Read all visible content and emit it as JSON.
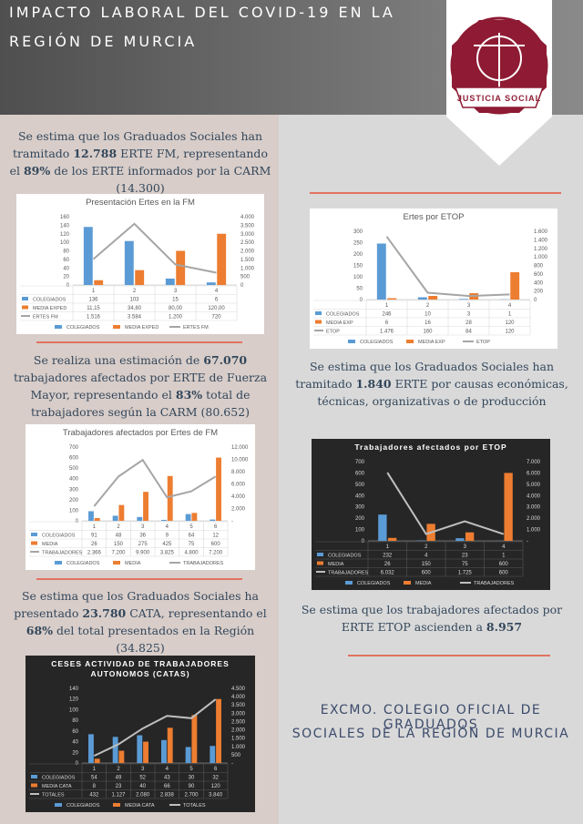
{
  "header": {
    "title_lines": [
      "IMPACTO LABORAL DEL COVID-19 EN LA",
      "REGIÓN DE MURCIA"
    ],
    "logo_text": "JUSTICIA SOCIAL"
  },
  "texts": [
    {
      "runs": [
        {
          "text": "Se estima que los Graduados Sociales han tramitado "
        },
        {
          "text": "12.788",
          "bold": true
        },
        {
          "text": " ERTE FM, representando el "
        },
        {
          "text": "89%",
          "bold": true
        },
        {
          "text": " de los ERTE informados por la CARM (14.300)"
        }
      ]
    },
    {
      "runs": [
        {
          "text": "Se realiza una estimación de "
        },
        {
          "text": "67.070",
          "bold": true
        },
        {
          "text": " trabajadores afectados por ERTE de Fuerza Mayor, representando el "
        },
        {
          "text": "83%",
          "bold": true
        },
        {
          "text": "  total de trabajadores según la CARM (80.652)"
        }
      ]
    },
    {
      "runs": [
        {
          "text": "Se estima que los Graduados Sociales ha presentado "
        },
        {
          "text": "23.780",
          "bold": true
        },
        {
          "text": " CATA, representando el "
        },
        {
          "text": "68%",
          "bold": true
        },
        {
          "text": " del total presentados en la Región (34.825)"
        }
      ]
    },
    {
      "runs": [
        {
          "text": "Se estima que los Graduados Sociales han tramitado "
        },
        {
          "text": "1.840",
          "bold": true
        },
        {
          "text": " ERTE por causas económicas, técnicas, organizativas o de producción"
        }
      ]
    },
    {
      "runs": [
        {
          "text": "Se estima que los trabajadores afectados por ERTE ETOP ascienden a "
        },
        {
          "text": "8.957",
          "bold": true
        }
      ]
    }
  ],
  "footer": {
    "lines": [
      "EXCMO. COLEGIO OFICIAL DE GRADUADOS",
      "SOCIALES DE LA REGIÓN DE MURCIA"
    ]
  },
  "chart_data": [
    {
      "type": "bar",
      "title": [
        "Presentación Ertes en la FM"
      ],
      "background": "#ffffff",
      "text_color": "#595959",
      "categories": [
        "1",
        "2",
        "3",
        "4"
      ],
      "ylim": [
        0,
        160
      ],
      "yticks": [
        0,
        20,
        40,
        60,
        80,
        100,
        120,
        140,
        160
      ],
      "y2lim": [
        0,
        4000
      ],
      "y2ticks": [
        0,
        500,
        {
          "value": 1000,
          "label": "1.000"
        },
        {
          "value": 1500,
          "label": "1.500"
        },
        {
          "value": 2000,
          "label": "2.000"
        },
        {
          "value": 2500,
          "label": "2.500"
        },
        {
          "value": 3000,
          "label": "3.000"
        },
        {
          "value": 3500,
          "label": "3.500"
        },
        {
          "value": 4000,
          "label": "4.000"
        }
      ],
      "series": [
        {
          "name": "COLEGIADOS",
          "color": "#5b9bd5",
          "values": [
            136,
            103,
            15,
            6
          ]
        },
        {
          "name": "MEDIA EXPED",
          "color": "#ed7d31",
          "values": [
            11.15,
            34.8,
            80,
            120
          ],
          "value_labels": [
            "11,15",
            "34,80",
            "80,00",
            "120,00"
          ]
        },
        {
          "name": "ERTES FM",
          "color": "#a5a5a5",
          "type": "line",
          "axis": "y2",
          "values": [
            1516,
            3584,
            1200,
            720
          ],
          "value_labels": [
            "1.516",
            "3.584",
            "1.200",
            "720"
          ]
        }
      ]
    },
    {
      "type": "bar",
      "title": [
        "Ertes por ETOP"
      ],
      "background": "#ffffff",
      "text_color": "#595959",
      "categories": [
        "1",
        "2",
        "3",
        "4"
      ],
      "ylim": [
        0,
        300
      ],
      "yticks": [
        0,
        50,
        100,
        150,
        200,
        250,
        300
      ],
      "y2lim": [
        0,
        1600
      ],
      "y2ticks": [
        0,
        200,
        400,
        600,
        800,
        {
          "value": 1000,
          "label": "1.000"
        },
        {
          "value": 1200,
          "label": "1.200"
        },
        {
          "value": 1400,
          "label": "1.400"
        },
        {
          "value": 1600,
          "label": "1.600"
        }
      ],
      "series": [
        {
          "name": "COLEGIADOS",
          "color": "#5b9bd5",
          "values": [
            246,
            10,
            3,
            1
          ]
        },
        {
          "name": "MEDIA EXP",
          "color": "#ed7d31",
          "values": [
            6,
            16,
            28,
            120
          ]
        },
        {
          "name": "ETOP",
          "color": "#a5a5a5",
          "type": "line",
          "axis": "y2",
          "values": [
            1476,
            160,
            84,
            120
          ],
          "value_labels": [
            "1.476",
            "160",
            "84",
            "120"
          ]
        }
      ]
    },
    {
      "type": "bar",
      "title": [
        "Trabajadores afectados por Ertes de FM"
      ],
      "background": "#ffffff",
      "text_color": "#595959",
      "categories": [
        "1",
        "2",
        "3",
        "4",
        "5",
        "6"
      ],
      "ylim": [
        0,
        700
      ],
      "yticks": [
        0,
        100,
        200,
        300,
        400,
        500,
        600,
        700
      ],
      "y2lim": [
        0,
        12000
      ],
      "y2ticks": [
        {
          "value": 0,
          "label": "-"
        },
        {
          "value": 2000,
          "label": "2.000"
        },
        {
          "value": 4000,
          "label": "4.000"
        },
        {
          "value": 6000,
          "label": "6.000"
        },
        {
          "value": 8000,
          "label": "8.000"
        },
        {
          "value": 10000,
          "label": "10.000"
        },
        {
          "value": 12000,
          "label": "12.000"
        }
      ],
      "series": [
        {
          "name": "COLEGIADOS",
          "color": "#5b9bd5",
          "values": [
            91,
            48,
            36,
            9,
            64,
            12
          ]
        },
        {
          "name": "MEDIA",
          "color": "#ed7d31",
          "values": [
            26,
            150,
            275,
            425,
            75,
            600
          ]
        },
        {
          "name": "TRABAJADORES",
          "color": "#a5a5a5",
          "type": "line",
          "axis": "y2",
          "values": [
            2366,
            7200,
            9900,
            3825,
            4800,
            7200
          ],
          "value_labels": [
            "2.366",
            "7.200",
            "9.900",
            "3.825",
            "4.800",
            "7.200"
          ]
        }
      ]
    },
    {
      "type": "bar",
      "title": [
        "Trabajadores afectados por ETOP"
      ],
      "background": "#262626",
      "text_color": "#d9d9d9",
      "categories": [
        "1",
        "2",
        "3",
        "4"
      ],
      "ylim": [
        0,
        700
      ],
      "yticks": [
        0,
        100,
        200,
        300,
        400,
        500,
        600,
        700
      ],
      "y2lim": [
        0,
        7000
      ],
      "y2ticks": [
        {
          "value": 0,
          "label": "-"
        },
        {
          "value": 1000,
          "label": "1.000"
        },
        {
          "value": 2000,
          "label": "2.000"
        },
        {
          "value": 3000,
          "label": "3.000"
        },
        {
          "value": 4000,
          "label": "4.000"
        },
        {
          "value": 5000,
          "label": "5.000"
        },
        {
          "value": 6000,
          "label": "6.000"
        },
        {
          "value": 7000,
          "label": "7.000"
        }
      ],
      "series": [
        {
          "name": "COLEGIADOS",
          "color": "#5b9bd5",
          "values": [
            232,
            4,
            23,
            1
          ]
        },
        {
          "name": "MEDIA",
          "color": "#ed7d31",
          "values": [
            26,
            150,
            75,
            600
          ]
        },
        {
          "name": "TRABAJADORES",
          "color": "#bfbfbf",
          "type": "line",
          "axis": "y2",
          "values": [
            6032,
            600,
            1725,
            600
          ],
          "value_labels": [
            "6.032",
            "600",
            "1.725",
            "600"
          ]
        }
      ]
    },
    {
      "type": "bar",
      "title": [
        "CESES ACTIVIDAD DE TRABAJADORES",
        "AUTONOMOS  (CATAS)"
      ],
      "background": "#262626",
      "text_color": "#d9d9d9",
      "categories": [
        "1",
        "2",
        "3",
        "4",
        "5",
        "6"
      ],
      "ylim": [
        0,
        140
      ],
      "yticks": [
        0,
        20,
        40,
        60,
        80,
        100,
        120,
        140
      ],
      "y2lim": [
        0,
        4500
      ],
      "y2ticks": [
        {
          "value": 0,
          "label": "-"
        },
        500,
        {
          "value": 1000,
          "label": "1.000"
        },
        {
          "value": 1500,
          "label": "1.500"
        },
        {
          "value": 2000,
          "label": "2.000"
        },
        {
          "value": 2500,
          "label": "2.500"
        },
        {
          "value": 3000,
          "label": "3.000"
        },
        {
          "value": 3500,
          "label": "3.500"
        },
        {
          "value": 4000,
          "label": "4.000"
        },
        {
          "value": 4500,
          "label": "4.500"
        }
      ],
      "series": [
        {
          "name": "COLEGIADOS",
          "color": "#5b9bd5",
          "values": [
            54,
            49,
            52,
            43,
            30,
            32
          ]
        },
        {
          "name": "MEDIA CATA",
          "color": "#ed7d31",
          "values": [
            8,
            23,
            40,
            66,
            90,
            120
          ]
        },
        {
          "name": "TOTALES",
          "color": "#bfbfbf",
          "type": "line",
          "axis": "y2",
          "values": [
            432,
            1127,
            2080,
            2838,
            2700,
            3840
          ],
          "value_labels": [
            "432",
            "1.127",
            "2.080",
            "2.838",
            "2.700",
            "3.840"
          ]
        }
      ]
    }
  ]
}
